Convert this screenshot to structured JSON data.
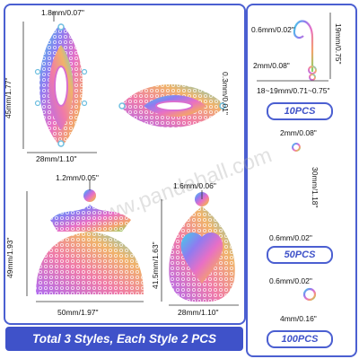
{
  "dimensions": {
    "top_left_width": "1.8mm/0.07\"",
    "top_left_height": "45mm/1.77\"",
    "top_left_bottom": "28mm/1.10\"",
    "top_right_height": "0.3mm/0.01\"",
    "fan_top": "1.2mm/0.05\"",
    "fan_height": "49mm/1.93\"",
    "fan_bottom": "50mm/1.97\"",
    "teardrop_top": "1.6mm/0.06\"",
    "teardrop_height": "41.5mm/1.63\"",
    "teardrop_bottom": "28mm/1.10\"",
    "hook_wire": "0.6mm/0.02\"",
    "hook_height": "19mm/0.75\"",
    "hook_coil": "2mm/0.08\"",
    "hook_width": "18~19mm/0.71~0.75\"",
    "pin_head": "2mm/0.08\"",
    "pin_length": "30mm/1.18\"",
    "pin_wire": "0.6mm/0.02\"",
    "ring_wire": "0.6mm/0.02\"",
    "ring_diameter": "4mm/0.16\""
  },
  "quantities": {
    "hooks": "10PCS",
    "pins": "50PCS",
    "rings": "100PCS"
  },
  "banner": "Total 3 Styles, Each Style 2 PCS",
  "watermark": "www.pandahall.com"
}
